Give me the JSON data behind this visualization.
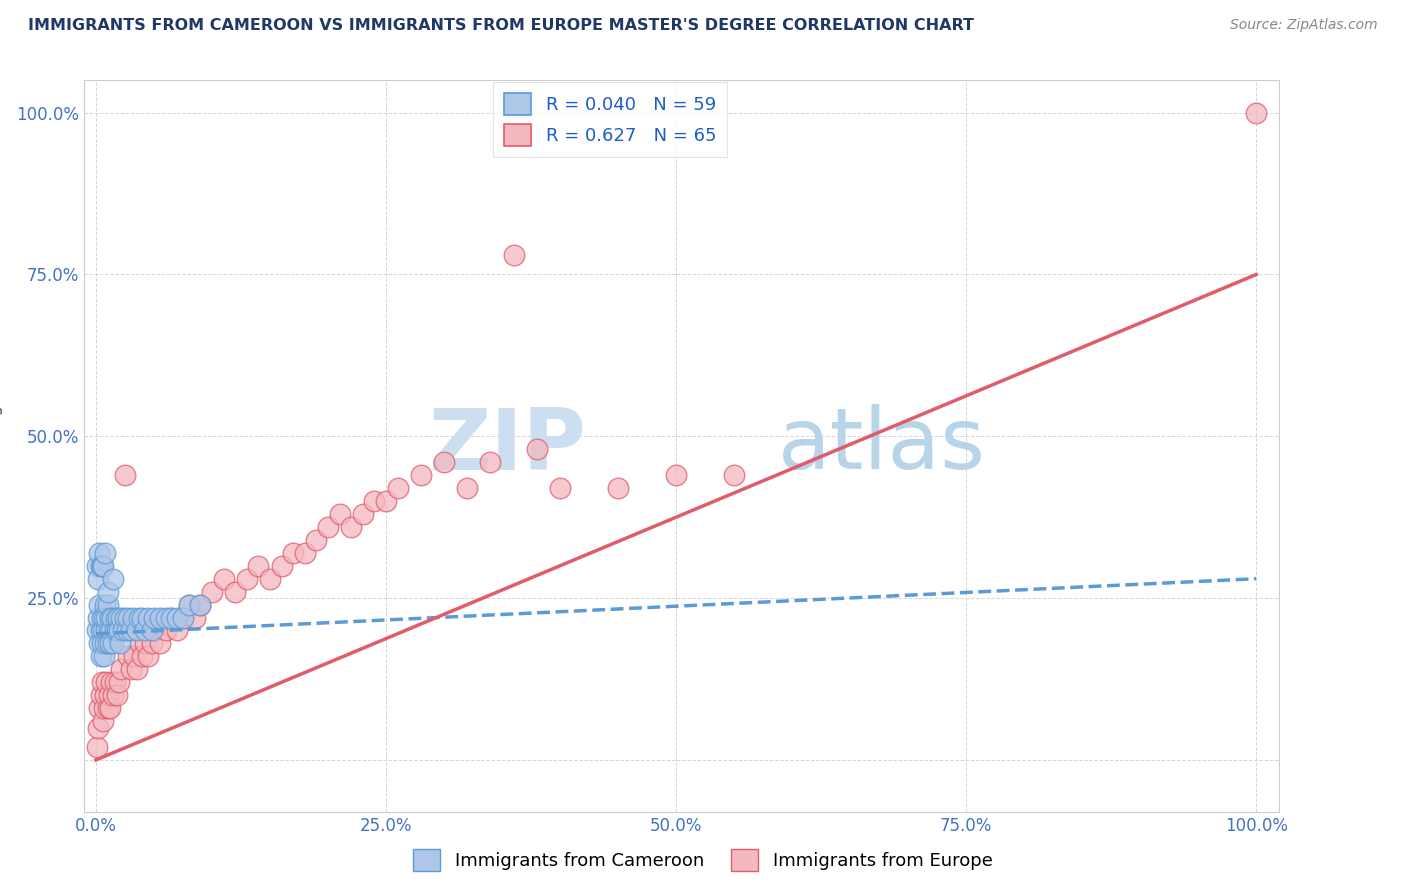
{
  "title": "IMMIGRANTS FROM CAMEROON VS IMMIGRANTS FROM EUROPE MASTER'S DEGREE CORRELATION CHART",
  "source": "Source: ZipAtlas.com",
  "ylabel": "Master's Degree",
  "blue_R": 0.04,
  "blue_N": 59,
  "pink_R": 0.627,
  "pink_N": 65,
  "blue_line_color": "#5b9bd5",
  "pink_line_color": "#e05c6a",
  "blue_marker_facecolor": "#aec6e8",
  "blue_marker_edgecolor": "#5b9bd5",
  "pink_marker_facecolor": "#f4b8c1",
  "pink_marker_edgecolor": "#e05c6a",
  "grid_color": "#cccccc",
  "background_color": "#ffffff",
  "title_color": "#1f3864",
  "axis_label_color": "#555555",
  "tick_label_color": "#4472c4",
  "watermark_zip_color": "#ccdff0",
  "watermark_atlas_color": "#b8d4e8",
  "blue_scatter_x": [
    0.001,
    0.002,
    0.003,
    0.003,
    0.004,
    0.004,
    0.005,
    0.005,
    0.006,
    0.007,
    0.007,
    0.008,
    0.008,
    0.009,
    0.009,
    0.01,
    0.01,
    0.011,
    0.012,
    0.012,
    0.013,
    0.014,
    0.015,
    0.016,
    0.017,
    0.018,
    0.019,
    0.02,
    0.021,
    0.022,
    0.023,
    0.025,
    0.027,
    0.028,
    0.03,
    0.032,
    0.035,
    0.037,
    0.04,
    0.042,
    0.045,
    0.048,
    0.05,
    0.055,
    0.06,
    0.065,
    0.07,
    0.075,
    0.08,
    0.09,
    0.001,
    0.002,
    0.003,
    0.004,
    0.005,
    0.006,
    0.008,
    0.01,
    0.015
  ],
  "blue_scatter_y": [
    0.2,
    0.22,
    0.18,
    0.24,
    0.16,
    0.2,
    0.22,
    0.18,
    0.2,
    0.22,
    0.16,
    0.24,
    0.18,
    0.2,
    0.22,
    0.18,
    0.24,
    0.2,
    0.22,
    0.18,
    0.2,
    0.22,
    0.18,
    0.2,
    0.22,
    0.2,
    0.22,
    0.2,
    0.18,
    0.22,
    0.2,
    0.22,
    0.2,
    0.22,
    0.2,
    0.22,
    0.2,
    0.22,
    0.22,
    0.2,
    0.22,
    0.2,
    0.22,
    0.22,
    0.22,
    0.22,
    0.22,
    0.22,
    0.24,
    0.24,
    0.3,
    0.28,
    0.32,
    0.3,
    0.3,
    0.3,
    0.32,
    0.26,
    0.28
  ],
  "pink_scatter_x": [
    0.001,
    0.002,
    0.003,
    0.004,
    0.005,
    0.006,
    0.007,
    0.008,
    0.009,
    0.01,
    0.011,
    0.012,
    0.013,
    0.015,
    0.016,
    0.018,
    0.02,
    0.022,
    0.025,
    0.028,
    0.03,
    0.033,
    0.035,
    0.038,
    0.04,
    0.042,
    0.045,
    0.048,
    0.05,
    0.055,
    0.06,
    0.065,
    0.07,
    0.075,
    0.08,
    0.085,
    0.09,
    0.1,
    0.11,
    0.12,
    0.13,
    0.14,
    0.15,
    0.16,
    0.17,
    0.18,
    0.19,
    0.2,
    0.21,
    0.22,
    0.23,
    0.24,
    0.25,
    0.26,
    0.28,
    0.3,
    0.32,
    0.34,
    0.36,
    0.38,
    0.4,
    0.45,
    0.5,
    0.55,
    1.0
  ],
  "pink_scatter_y": [
    0.02,
    0.05,
    0.08,
    0.1,
    0.12,
    0.06,
    0.08,
    0.1,
    0.12,
    0.08,
    0.1,
    0.08,
    0.12,
    0.1,
    0.12,
    0.1,
    0.12,
    0.14,
    0.44,
    0.16,
    0.14,
    0.16,
    0.14,
    0.18,
    0.16,
    0.18,
    0.16,
    0.18,
    0.2,
    0.18,
    0.2,
    0.22,
    0.2,
    0.22,
    0.24,
    0.22,
    0.24,
    0.26,
    0.28,
    0.26,
    0.28,
    0.3,
    0.28,
    0.3,
    0.32,
    0.32,
    0.34,
    0.36,
    0.38,
    0.36,
    0.38,
    0.4,
    0.4,
    0.42,
    0.44,
    0.46,
    0.42,
    0.46,
    0.78,
    0.48,
    0.42,
    0.42,
    0.44,
    0.44,
    1.0
  ],
  "xlim": [
    -0.01,
    1.02
  ],
  "ylim": [
    -0.08,
    1.05
  ],
  "xtick_positions": [
    0.0,
    0.25,
    0.5,
    0.75,
    1.0
  ],
  "xtick_labels": [
    "0.0%",
    "25.0%",
    "50.0%",
    "75.0%",
    "100.0%"
  ],
  "ytick_positions": [
    0.0,
    0.25,
    0.5,
    0.75,
    1.0
  ],
  "ytick_labels": [
    "",
    "25.0%",
    "50.0%",
    "75.0%",
    "100.0%"
  ],
  "pink_line_start_x": 0.0,
  "pink_line_start_y": 0.0,
  "pink_line_end_x": 1.0,
  "pink_line_end_y": 0.75,
  "blue_line_start_x": 0.0,
  "blue_line_start_y": 0.195,
  "blue_line_end_x": 1.0,
  "blue_line_end_y": 0.28
}
